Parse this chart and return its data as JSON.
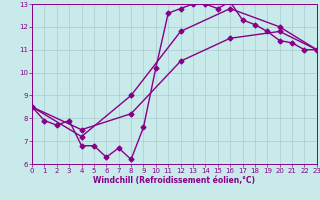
{
  "xlabel": "Windchill (Refroidissement éolien,°C)",
  "xlim": [
    0,
    23
  ],
  "ylim": [
    6,
    13
  ],
  "xticks": [
    0,
    1,
    2,
    3,
    4,
    5,
    6,
    7,
    8,
    9,
    10,
    11,
    12,
    13,
    14,
    15,
    16,
    17,
    18,
    19,
    20,
    21,
    22,
    23
  ],
  "yticks": [
    6,
    7,
    8,
    9,
    10,
    11,
    12,
    13
  ],
  "line_color": "#880088",
  "bg_color": "#c8eaea",
  "grid_color": "#aacccc",
  "marker": "D",
  "markersize": 2.5,
  "linewidth": 1.0,
  "segments": [
    {
      "x": [
        0,
        1,
        2,
        3,
        4,
        5,
        6,
        7,
        8,
        9,
        10,
        11,
        12,
        13,
        14,
        15,
        16,
        17,
        18,
        19,
        20,
        21,
        22,
        23
      ],
      "y": [
        8.5,
        7.9,
        7.7,
        7.9,
        6.8,
        6.8,
        6.3,
        6.7,
        6.2,
        7.6,
        10.2,
        12.6,
        12.8,
        13.0,
        13.0,
        12.8,
        13.1,
        12.3,
        12.1,
        11.8,
        11.4,
        11.3,
        11.0,
        11.0
      ]
    },
    {
      "x": [
        0,
        4,
        8,
        12,
        16,
        20,
        23
      ],
      "y": [
        8.5,
        7.5,
        8.2,
        10.5,
        11.5,
        11.8,
        11.0
      ]
    },
    {
      "x": [
        0,
        4,
        8,
        12,
        16,
        20,
        23
      ],
      "y": [
        8.5,
        7.2,
        9.0,
        11.8,
        12.8,
        12.0,
        11.0
      ]
    }
  ]
}
